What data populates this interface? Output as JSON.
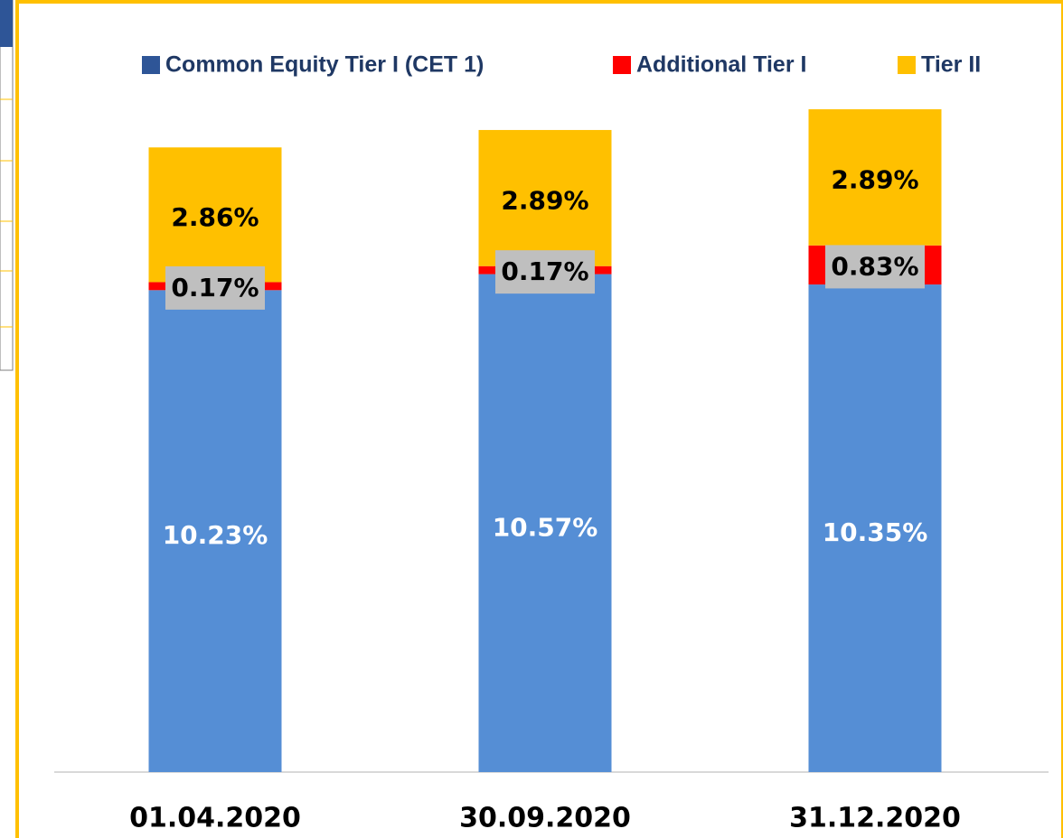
{
  "chart_data": {
    "type": "stacked_bar",
    "categories": [
      "01.04.2020",
      "30.09.2020",
      "31.12.2020"
    ],
    "series": [
      {
        "name": "Common Equity Tier I (CET 1)",
        "color": "#558ed5",
        "legend_color": "#2e5597",
        "values": [
          10.23,
          10.57,
          10.35
        ],
        "value_labels": [
          "10.23%",
          "10.57%",
          "10.35%"
        ]
      },
      {
        "name": "Additional Tier I",
        "color": "#ff0000",
        "values": [
          0.17,
          0.17,
          0.83
        ],
        "value_labels": [
          "0.17%",
          "0.17%",
          "0.83%"
        ]
      },
      {
        "name": "Tier II",
        "color": "#ffc000",
        "values": [
          2.86,
          2.89,
          2.89
        ],
        "value_labels": [
          "2.86%",
          "2.89%",
          "2.89%"
        ]
      }
    ],
    "legend": "top"
  }
}
